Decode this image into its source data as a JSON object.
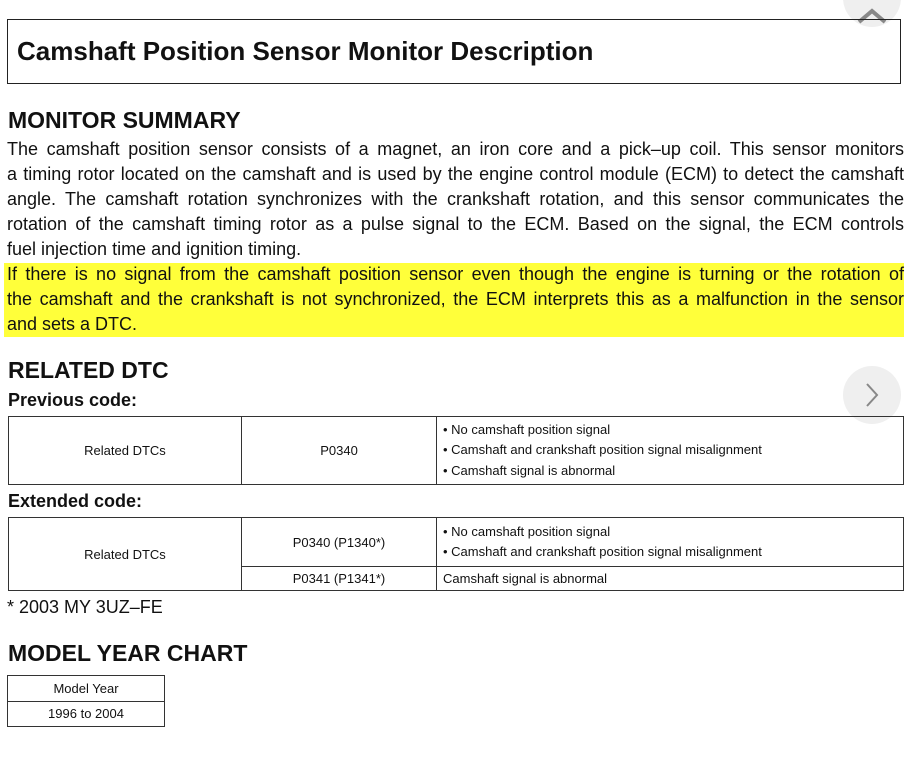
{
  "title": "Camshaft Position Sensor Monitor Description",
  "summary": {
    "heading": "MONITOR SUMMARY",
    "lines": [
      "The camshaft position sensor consists of a magnet, an iron core and a pick–up coil. This sensor monitors",
      "a timing rotor located on the camshaft and is used by the engine control module (ECM) to detect the camshaft",
      "angle. The camshaft rotation synchronizes with the crankshaft rotation, and this sensor communicates the",
      "rotation of the camshaft timing rotor as a pulse signal to the ECM. Based on the signal, the ECM controls",
      "fuel injection time and ignition timing."
    ],
    "highlight_lines": [
      "If there is no signal from the camshaft position sensor even though the engine is turning or the rotation of",
      "the camshaft and the crankshaft is not synchronized, the ECM interprets this as a malfunction in the sensor",
      "and sets a DTC."
    ],
    "highlight_color": "#ffff3a"
  },
  "related": {
    "heading": "RELATED DTC",
    "previous": {
      "label": "Previous code:",
      "col1": "Related DTCs",
      "code": "P0340",
      "items": [
        "• No camshaft position signal",
        "• Camshaft and crankshaft position signal misalignment",
        "• Camshaft signal is abnormal"
      ]
    },
    "extended": {
      "label": "Extended code:",
      "col1": "Related DTCs",
      "code1": "P0340 (P1340*)",
      "items1": [
        "• No camshaft position signal",
        "• Camshaft and crankshaft position signal misalignment"
      ],
      "code2": "P0341 (P1341*)",
      "item2": "Camshaft signal is abnormal"
    },
    "footnote": "* 2003 MY 3UZ–FE"
  },
  "model_year": {
    "heading": "MODEL YEAR CHART",
    "header": "Model Year",
    "value": "1996 to 2004"
  },
  "nav": {
    "up_icon": "chevron-up-icon",
    "right_icon": "chevron-right-icon"
  }
}
